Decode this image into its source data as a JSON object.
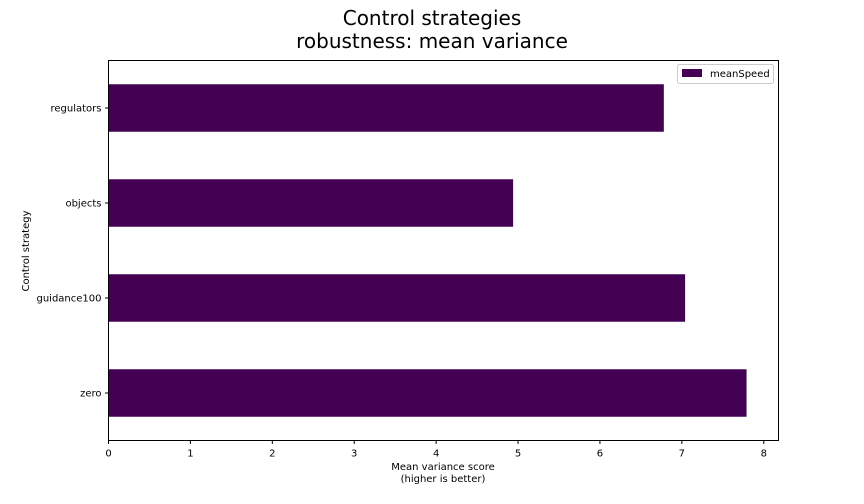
{
  "chart_data": {
    "type": "bar",
    "orientation": "horizontal",
    "title": [
      "Control strategies",
      "robustness: mean variance"
    ],
    "categories": [
      "regulators",
      "objects",
      "guidance100",
      "zero"
    ],
    "series": [
      {
        "name": "meanSpeed",
        "color": "#440154",
        "values": [
          6.78,
          4.94,
          7.04,
          7.79
        ]
      }
    ],
    "xlabel": [
      "Mean variance score",
      "(higher is better)"
    ],
    "ylabel": "Control strategy",
    "xlim": [
      0,
      8.18
    ],
    "xticks": [
      "0",
      "1",
      "2",
      "3",
      "4",
      "5",
      "6",
      "7",
      "8"
    ],
    "grid": false,
    "legend": "top-right"
  }
}
